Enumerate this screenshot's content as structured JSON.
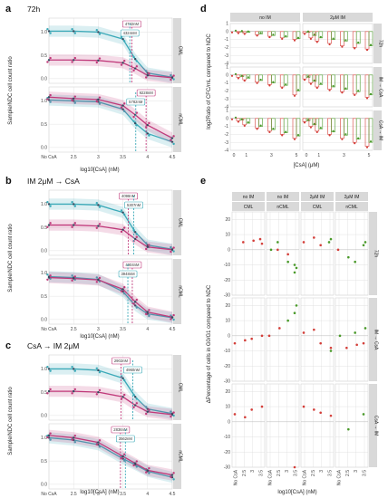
{
  "colors": {
    "cml": "#3aa9b8",
    "ncml": "#c0397a",
    "dark": "#34495e",
    "red": "#d43f3a",
    "green": "#4a9a2a",
    "grid": "#dcdcdc",
    "strip": "#d9d9d9"
  },
  "panels": {
    "a": {
      "letter": "a",
      "title": "72h"
    },
    "b": {
      "letter": "b",
      "title": "IM 2μM → CsA"
    },
    "c": {
      "letter": "c",
      "title": "CsA → IM 2μM"
    },
    "d": {
      "letter": "d"
    },
    "e": {
      "letter": "e"
    }
  },
  "dose_axis": {
    "ylabel": "Sample/NDC cell count ratio",
    "xlabel": "log10[CsA] (nM)",
    "x_ticks": [
      "No CsA",
      "2.5",
      "3",
      "3.5",
      "4",
      "4.5"
    ],
    "y_ticks": [
      "0.0",
      "0.5",
      "1.0"
    ],
    "strips": [
      "CML",
      "nCML"
    ]
  },
  "chart_data": [
    {
      "panel": "a",
      "type": "line",
      "title": "72h",
      "xlabel": "log10[CsA] (nM)",
      "ylabel": "Sample/NDC cell count ratio",
      "xlim": [
        2.0,
        4.5
      ],
      "ylim": [
        -0.1,
        1.3
      ],
      "facets": [
        {
          "strip": "CML",
          "annotations": [
            {
              "text": "4782nM",
              "x": 3.68,
              "color": "#c0397a"
            },
            {
              "text": "4324nM",
              "x": 3.64,
              "color": "#3aa9b8"
            }
          ],
          "series": [
            {
              "key": "cml-cell",
              "color": "#3aa9b8",
              "x": [
                2.0,
                2.5,
                3.0,
                3.5,
                3.75,
                4.0,
                4.5
              ],
              "y": [
                1.02,
                1.02,
                1.0,
                0.85,
                0.42,
                0.12,
                0.03
              ]
            },
            {
              "key": "ncml-cell",
              "color": "#c0397a",
              "x": [
                2.0,
                2.5,
                3.0,
                3.5,
                3.75,
                4.0,
                4.5
              ],
              "y": [
                0.4,
                0.4,
                0.39,
                0.34,
                0.22,
                0.07,
                0.02
              ]
            }
          ]
        },
        {
          "strip": "nCML",
          "annotations": [
            {
              "text": "9228nM",
              "x": 3.97,
              "color": "#c0397a"
            },
            {
              "text": "5782nM",
              "x": 3.76,
              "color": "#3aa9b8"
            }
          ],
          "series": [
            {
              "key": "cml-cell",
              "color": "#3aa9b8",
              "x": [
                2.0,
                2.5,
                3.0,
                3.5,
                3.75,
                4.0,
                4.5
              ],
              "y": [
                1.02,
                1.0,
                0.98,
                0.82,
                0.52,
                0.3,
                0.12
              ]
            },
            {
              "key": "ncml-cell",
              "color": "#c0397a",
              "x": [
                2.0,
                2.5,
                3.0,
                3.5,
                3.75,
                4.0,
                4.5
              ],
              "y": [
                1.08,
                1.05,
                1.03,
                0.9,
                0.7,
                0.48,
                0.2
              ]
            }
          ]
        }
      ]
    },
    {
      "panel": "b",
      "type": "line",
      "title": "IM 2μM → CsA",
      "xlabel": "log10[CsA] (nM)",
      "ylabel": "Sample/NDC cell count ratio",
      "xlim": [
        2.0,
        4.5
      ],
      "ylim": [
        -0.1,
        1.3
      ],
      "facets": [
        {
          "strip": "CML",
          "annotations": [
            {
              "text": "4098nM",
              "x": 3.61,
              "color": "#c0397a"
            },
            {
              "text": "5307nM",
              "x": 3.72,
              "color": "#3aa9b8"
            }
          ],
          "series": [
            {
              "key": "cml-cell",
              "color": "#3aa9b8",
              "x": [
                2.0,
                2.5,
                3.0,
                3.5,
                3.75,
                4.0,
                4.5
              ],
              "y": [
                1.0,
                1.0,
                0.98,
                0.82,
                0.4,
                0.12,
                0.03
              ]
            },
            {
              "key": "ncml-cell",
              "color": "#c0397a",
              "x": [
                2.0,
                2.5,
                3.0,
                3.5,
                3.75,
                4.0,
                4.5
              ],
              "y": [
                0.55,
                0.55,
                0.53,
                0.45,
                0.25,
                0.08,
                0.02
              ]
            }
          ]
        },
        {
          "strip": "nCML",
          "annotations": [
            {
              "text": "4904nM",
              "x": 3.69,
              "color": "#c0397a"
            },
            {
              "text": "3948nM",
              "x": 3.6,
              "color": "#3aa9b8"
            }
          ],
          "series": [
            {
              "key": "cml-cell",
              "color": "#3aa9b8",
              "x": [
                2.0,
                2.5,
                3.0,
                3.5,
                3.75,
                4.0,
                4.5
              ],
              "y": [
                0.92,
                0.9,
                0.86,
                0.6,
                0.3,
                0.12,
                0.04
              ]
            },
            {
              "key": "ncml-cell",
              "color": "#c0397a",
              "x": [
                2.0,
                2.5,
                3.0,
                3.5,
                3.75,
                4.0,
                4.5
              ],
              "y": [
                0.9,
                0.88,
                0.85,
                0.65,
                0.38,
                0.16,
                0.05
              ]
            }
          ]
        }
      ]
    },
    {
      "panel": "c",
      "type": "line",
      "title": "CsA → IM 2μM",
      "xlabel": "log10[CsA] (nM)",
      "ylabel": "Sample/NDC cell count ratio",
      "xlim": [
        2.0,
        4.5
      ],
      "ylim": [
        -0.1,
        1.3
      ],
      "facets": [
        {
          "strip": "CML",
          "annotations": [
            {
              "text": "2902nM",
              "x": 3.46,
              "color": "#c0397a"
            },
            {
              "text": "4960nM",
              "x": 3.7,
              "color": "#3aa9b8"
            }
          ],
          "series": [
            {
              "key": "cml-cell",
              "color": "#3aa9b8",
              "x": [
                2.0,
                2.5,
                3.0,
                3.5,
                3.75,
                4.0,
                4.5
              ],
              "y": [
                1.0,
                1.0,
                0.97,
                0.8,
                0.4,
                0.14,
                0.04
              ]
            },
            {
              "key": "ncml-cell",
              "color": "#c0397a",
              "x": [
                2.0,
                2.5,
                3.0,
                3.5,
                3.75,
                4.0,
                4.5
              ],
              "y": [
                0.52,
                0.52,
                0.5,
                0.4,
                0.22,
                0.08,
                0.02
              ]
            }
          ]
        },
        {
          "strip": "nCML",
          "annotations": [
            {
              "text": "2836nM",
              "x": 3.45,
              "color": "#c0397a"
            },
            {
              "text": "3562nM",
              "x": 3.55,
              "color": "#3aa9b8"
            }
          ],
          "series": [
            {
              "key": "cml-cell",
              "color": "#3aa9b8",
              "x": [
                2.0,
                2.5,
                3.0,
                3.5,
                3.75,
                4.0,
                4.5
              ],
              "y": [
                1.0,
                0.95,
                0.85,
                0.55,
                0.42,
                0.28,
                0.15
              ]
            },
            {
              "key": "ncml-cell",
              "color": "#c0397a",
              "x": [
                2.0,
                2.5,
                3.0,
                3.5,
                3.75,
                4.0,
                4.5
              ],
              "y": [
                1.05,
                1.0,
                0.9,
                0.6,
                0.45,
                0.3,
                0.2
              ]
            }
          ]
        }
      ]
    },
    {
      "panel": "d",
      "type": "bar",
      "ylabel": "log2Ratio of CFC/mL compared to NDC",
      "xlabel": "[CsA] (μM)",
      "x_ticks": [
        "0",
        "1",
        "3",
        "5"
      ],
      "x_values": [
        0,
        0.5,
        1,
        2,
        3,
        4,
        5
      ],
      "y_ticks": [
        "1",
        "0",
        "-1",
        "-2",
        "-3",
        "-4"
      ],
      "ylim": [
        -4,
        1
      ],
      "col_strips": [
        "no IM",
        "2μM IM"
      ],
      "row_strips": [
        "72h",
        "IM → CsA",
        "CsA → IM"
      ],
      "cells": [
        {
          "row": 0,
          "col": 0,
          "red": [
            0,
            -0.1,
            -0.2,
            -0.4,
            -0.6,
            -0.8,
            -1.0
          ],
          "green": [
            0,
            -0.05,
            -0.1,
            -0.3,
            -0.5,
            -0.7,
            -0.9
          ]
        },
        {
          "row": 0,
          "col": 1,
          "red": [
            -0.2,
            -0.8,
            -1.2,
            -1.5,
            -1.8,
            -2.0,
            -2.2
          ],
          "green": [
            -0.1,
            -0.5,
            -0.8,
            -1.0,
            -1.2,
            -1.5,
            -1.8
          ]
        },
        {
          "row": 1,
          "col": 0,
          "red": [
            0,
            -0.3,
            -0.6,
            -0.9,
            -1.2,
            -1.5,
            -2.5
          ],
          "green": [
            0,
            -0.2,
            -0.4,
            -0.7,
            -1.0,
            -1.3,
            -2.0
          ]
        },
        {
          "row": 1,
          "col": 1,
          "red": [
            -0.5,
            -1.0,
            -1.5,
            -1.8,
            -2.1,
            -2.4,
            -2.8
          ],
          "green": [
            -0.3,
            -0.8,
            -1.2,
            -1.5,
            -1.8,
            -2.1,
            -2.5
          ]
        },
        {
          "row": 2,
          "col": 0,
          "red": [
            0,
            -0.3,
            -0.8,
            -1.2,
            -1.6,
            -2.0,
            -2.5
          ],
          "green": [
            0,
            -0.2,
            -0.6,
            -1.0,
            -1.4,
            -1.8,
            -2.2
          ]
        },
        {
          "row": 2,
          "col": 1,
          "red": [
            -0.4,
            -1.0,
            -1.6,
            -2.0,
            -2.5,
            -3.0,
            -3.5
          ],
          "green": [
            -0.3,
            -0.8,
            -1.3,
            -1.7,
            -2.1,
            -2.6,
            -3.0
          ]
        }
      ]
    },
    {
      "panel": "e",
      "type": "scatter",
      "ylabel": "ΔPercentage of cells in G0/G1 compared to NDC",
      "xlabel": "log10[CsA] (nM)",
      "x_ticks": [
        "No CsA",
        "2.5",
        "3",
        "3.5"
      ],
      "x_tick_values": [
        2,
        2.5,
        3,
        3.5
      ],
      "y_ticks": [
        "20",
        "10",
        "0",
        "-10",
        "-20",
        "-30"
      ],
      "ylim": [
        -30,
        25
      ],
      "col_strips_top": [
        "no IM",
        "no IM",
        "2μM IM",
        "2μM IM"
      ],
      "col_strips_bottom": [
        "CML",
        "nCML",
        "CML",
        "nCML"
      ],
      "row_strips": [
        "72h",
        "IM → CsA",
        "CsA → IM"
      ],
      "cells": [
        {
          "row": 0,
          "col": 0,
          "red_x": [
            2.5,
            3,
            3.5,
            3.5
          ],
          "red_y": [
            5,
            6,
            7,
            4
          ],
          "green_x": [],
          "green_y": []
        },
        {
          "row": 0,
          "col": 1,
          "red_x": [
            2.5,
            3
          ],
          "red_y": [
            0,
            -3
          ],
          "green_x": [
            2,
            2.5,
            3,
            3.5,
            3.5,
            3.5
          ],
          "green_y": [
            0,
            5,
            -8,
            -10,
            -12,
            -15
          ]
        },
        {
          "row": 0,
          "col": 2,
          "red_x": [
            2,
            2.5,
            3
          ],
          "red_y": [
            5,
            8,
            3
          ],
          "green_x": [
            3.5,
            3.5
          ],
          "green_y": [
            7,
            5
          ]
        },
        {
          "row": 0,
          "col": 3,
          "red_x": [
            2
          ],
          "red_y": [
            0
          ],
          "green_x": [
            2.5,
            3,
            3.5,
            3.5
          ],
          "green_y": [
            -5,
            -8,
            5,
            3
          ]
        },
        {
          "row": 1,
          "col": 0,
          "red_x": [
            2,
            2.5,
            3,
            3.5
          ],
          "red_y": [
            -5,
            -3,
            -2,
            0
          ],
          "green_x": [],
          "green_y": []
        },
        {
          "row": 1,
          "col": 1,
          "red_x": [
            2,
            2.5
          ],
          "red_y": [
            0,
            5
          ],
          "green_x": [
            3,
            3.5,
            3.5
          ],
          "green_y": [
            10,
            15,
            20
          ]
        },
        {
          "row": 1,
          "col": 2,
          "red_x": [
            2,
            2.5,
            3,
            3.5
          ],
          "red_y": [
            2,
            4,
            -5,
            -8
          ],
          "green_x": [
            3.5
          ],
          "green_y": [
            -10
          ]
        },
        {
          "row": 1,
          "col": 3,
          "red_x": [
            2.5,
            3,
            3.5
          ],
          "red_y": [
            -8,
            -6,
            -5
          ],
          "green_x": [
            2,
            3,
            3.5
          ],
          "green_y": [
            0,
            2,
            5
          ]
        },
        {
          "row": 2,
          "col": 0,
          "red_x": [
            2,
            2.5,
            3,
            3.5
          ],
          "red_y": [
            5,
            3,
            8,
            10
          ],
          "green_x": [],
          "green_y": []
        },
        {
          "row": 2,
          "col": 1,
          "red_x": [
            3.5
          ],
          "red_y": [
            -30
          ],
          "green_x": [],
          "green_y": []
        },
        {
          "row": 2,
          "col": 2,
          "red_x": [
            2,
            2.5,
            3,
            3.5
          ],
          "red_y": [
            10,
            8,
            6,
            4
          ],
          "green_x": [],
          "green_y": []
        },
        {
          "row": 2,
          "col": 3,
          "red_x": [],
          "red_y": [],
          "green_x": [
            2.5,
            3.5
          ],
          "green_y": [
            -5,
            5
          ]
        }
      ]
    }
  ]
}
